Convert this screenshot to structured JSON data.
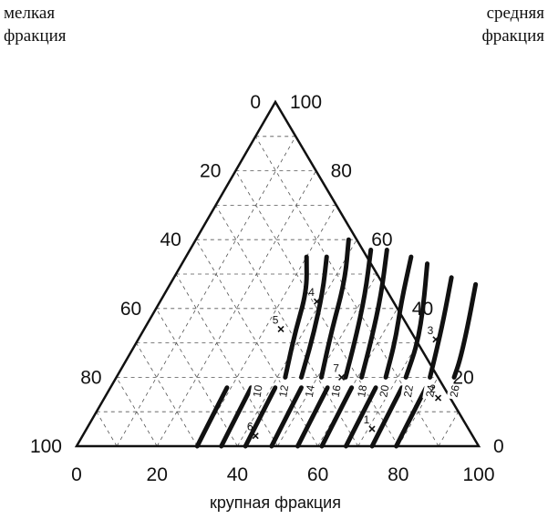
{
  "chart_data": {
    "type": "ternary",
    "corner_labels": {
      "left": {
        "line1": "мелкая",
        "line2": "фракция"
      },
      "right": {
        "line1": "средняя",
        "line2": "фракция"
      }
    },
    "xlabel": "крупная фракция",
    "axis_range": [
      0,
      100
    ],
    "bottom_ticks": [
      "0",
      "20",
      "40",
      "60",
      "80",
      "100"
    ],
    "left_ticks": [
      "0",
      "20",
      "40",
      "60",
      "80",
      "100"
    ],
    "right_ticks": [
      "100",
      "80",
      "60",
      "40",
      "20",
      "0"
    ],
    "grid": true,
    "contour_labels": [
      "10",
      "12",
      "14",
      "16",
      "18",
      "20",
      "22",
      "24",
      "26"
    ],
    "contour_label_points": [
      {
        "label": "10",
        "coarse": 37.0,
        "fine": 16.0
      },
      {
        "label": "12",
        "coarse": 43.5,
        "fine": 16.0
      },
      {
        "label": "14",
        "coarse": 50.0,
        "fine": 16.0
      },
      {
        "label": "16",
        "coarse": 56.5,
        "fine": 16.0
      },
      {
        "label": "18",
        "coarse": 63.0,
        "fine": 16.0
      },
      {
        "label": "20",
        "coarse": 68.5,
        "fine": 16.0
      },
      {
        "label": "22",
        "coarse": 74.5,
        "fine": 16.0
      },
      {
        "label": "24",
        "coarse": 80.0,
        "fine": 16.0
      },
      {
        "label": "26",
        "coarse": 86.0,
        "fine": 16.0
      }
    ],
    "contours": [
      [
        {
          "coarse": 30,
          "fine": 55
        },
        {
          "coarse": 35,
          "fine": 45
        },
        {
          "coarse": 38,
          "fine": 33
        },
        {
          "coarse": 42,
          "fine": 20
        }
      ],
      [
        {
          "coarse": 35,
          "fine": 55
        },
        {
          "coarse": 39,
          "fine": 45
        },
        {
          "coarse": 43,
          "fine": 32
        },
        {
          "coarse": 46,
          "fine": 20
        }
      ],
      [
        {
          "coarse": 38,
          "fine": 60
        },
        {
          "coarse": 43,
          "fine": 48
        },
        {
          "coarse": 47,
          "fine": 33
        },
        {
          "coarse": 51,
          "fine": 20
        }
      ],
      [
        {
          "coarse": 45,
          "fine": 57
        },
        {
          "coarse": 50,
          "fine": 44
        },
        {
          "coarse": 54,
          "fine": 31
        },
        {
          "coarse": 57,
          "fine": 20
        }
      ],
      [
        {
          "coarse": 49,
          "fine": 57
        },
        {
          "coarse": 54,
          "fine": 44
        },
        {
          "coarse": 58,
          "fine": 31
        },
        {
          "coarse": 61,
          "fine": 20
        }
      ],
      [
        {
          "coarse": 56,
          "fine": 55
        },
        {
          "coarse": 60,
          "fine": 42
        },
        {
          "coarse": 64,
          "fine": 31
        },
        {
          "coarse": 67,
          "fine": 20
        }
      ],
      [
        {
          "coarse": 61,
          "fine": 53
        },
        {
          "coarse": 66,
          "fine": 41
        },
        {
          "coarse": 70,
          "fine": 30
        },
        {
          "coarse": 72,
          "fine": 20
        }
      ],
      [
        {
          "coarse": 69,
          "fine": 49
        },
        {
          "coarse": 73,
          "fine": 37
        },
        {
          "coarse": 76,
          "fine": 27
        },
        {
          "coarse": 78,
          "fine": 20
        }
      ],
      [
        {
          "coarse": 76,
          "fine": 47
        },
        {
          "coarse": 80,
          "fine": 35
        },
        {
          "coarse": 83,
          "fine": 25
        },
        {
          "coarse": 84,
          "fine": 20
        }
      ],
      [
        {
          "coarse": 29,
          "fine": 17
        },
        {
          "coarse": 29.5,
          "fine": 8
        },
        {
          "coarse": 30,
          "fine": 0
        }
      ],
      [
        {
          "coarse": 35,
          "fine": 17
        },
        {
          "coarse": 35.5,
          "fine": 8
        },
        {
          "coarse": 36,
          "fine": 0
        }
      ],
      [
        {
          "coarse": 41,
          "fine": 17
        },
        {
          "coarse": 41.5,
          "fine": 8
        },
        {
          "coarse": 42,
          "fine": 0
        }
      ],
      [
        {
          "coarse": 47.5,
          "fine": 17
        },
        {
          "coarse": 48,
          "fine": 8
        },
        {
          "coarse": 48.5,
          "fine": 0
        }
      ],
      [
        {
          "coarse": 54,
          "fine": 17
        },
        {
          "coarse": 54.5,
          "fine": 8
        },
        {
          "coarse": 55,
          "fine": 0
        }
      ],
      [
        {
          "coarse": 60,
          "fine": 17
        },
        {
          "coarse": 60.5,
          "fine": 8
        },
        {
          "coarse": 61,
          "fine": 0
        }
      ],
      [
        {
          "coarse": 66,
          "fine": 17
        },
        {
          "coarse": 66.5,
          "fine": 8
        },
        {
          "coarse": 67,
          "fine": 0
        }
      ],
      [
        {
          "coarse": 72.5,
          "fine": 17
        },
        {
          "coarse": 73,
          "fine": 8
        },
        {
          "coarse": 73.5,
          "fine": 0
        }
      ],
      [
        {
          "coarse": 78.5,
          "fine": 17
        },
        {
          "coarse": 79,
          "fine": 8
        },
        {
          "coarse": 79.5,
          "fine": 0
        }
      ]
    ],
    "points": [
      {
        "label": "1",
        "coarse": 71,
        "fine": 5
      },
      {
        "label": "2",
        "coarse": 83,
        "fine": 14
      },
      {
        "label": "3",
        "coarse": 74,
        "fine": 31
      },
      {
        "label": "4",
        "coarse": 39,
        "fine": 42
      },
      {
        "label": "5",
        "coarse": 34,
        "fine": 34
      },
      {
        "label": "6",
        "coarse": 43,
        "fine": 3
      },
      {
        "label": "7",
        "coarse": 56,
        "fine": 20
      }
    ]
  }
}
